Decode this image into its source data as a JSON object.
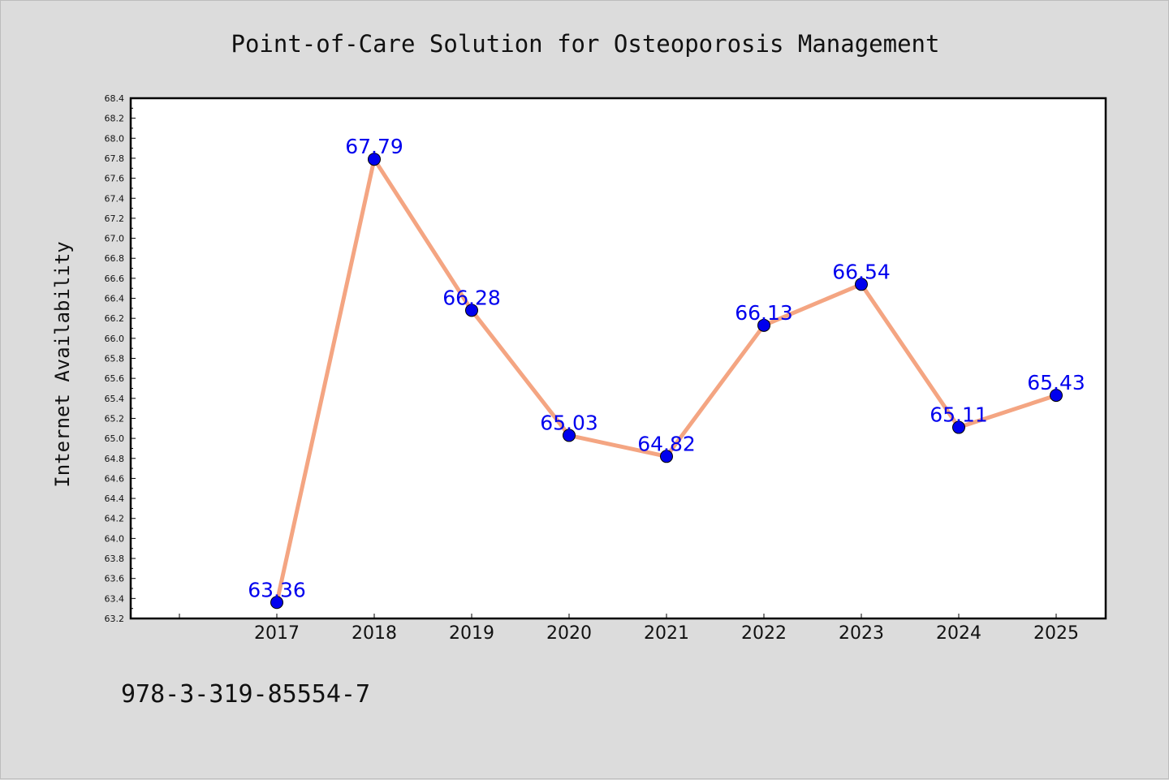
{
  "chart_data": {
    "type": "line",
    "title": "Point-of-Care Solution for Osteoporosis Management",
    "xlabel": "",
    "ylabel": "Internet Availability",
    "categories": [
      "2017",
      "2018",
      "2019",
      "2020",
      "2021",
      "2022",
      "2023",
      "2024",
      "2025"
    ],
    "series": [
      {
        "values": [
          63.36,
          67.79,
          66.28,
          65.03,
          64.82,
          66.13,
          66.54,
          65.11,
          65.43
        ],
        "labels": [
          "63.36",
          "67.79",
          "66.28",
          "65.03",
          "64.82",
          "66.13",
          "66.54",
          "65.11",
          "65.43"
        ]
      }
    ],
    "ylim": [
      63.2,
      68.4
    ],
    "yticks": [
      "63.2",
      "63.4",
      "63.6",
      "63.8",
      "64.0",
      "64.2",
      "64.4",
      "64.6",
      "64.8",
      "65.0",
      "65.2",
      "65.4",
      "65.6",
      "65.8",
      "66.0",
      "66.2",
      "66.4",
      "66.6",
      "66.8",
      "67.0",
      "67.2",
      "67.4",
      "67.6",
      "67.8",
      "68.0",
      "68.2",
      "68.4"
    ],
    "grid": false,
    "colors": {
      "line": "#f4a582",
      "marker": "#0000ee",
      "label": "#0000ee"
    }
  },
  "footer": {
    "isbn": "978-3-319-85554-7"
  }
}
